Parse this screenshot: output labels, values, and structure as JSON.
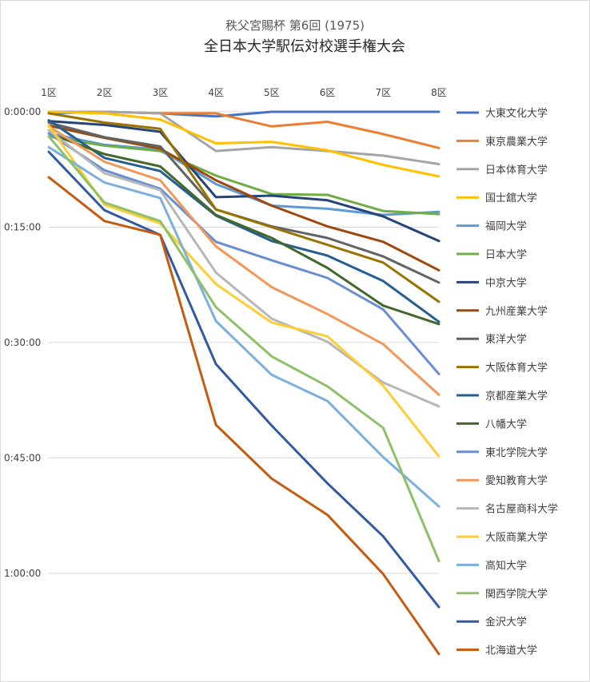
{
  "chart_data": {
    "type": "line",
    "title": "全日本大学駅伝対校選手権大会",
    "subtitle": "秩父宮賜杯 第6回 (1975)",
    "x": [
      "1区",
      "2区",
      "3区",
      "4区",
      "5区",
      "6区",
      "7区",
      "8区"
    ],
    "y_ticks": [
      "0:00:00",
      "0:15:00",
      "0:30:00",
      "0:45:00",
      "1:00:00"
    ],
    "y_unit": "minutes behind leader",
    "y_reversed": true,
    "ylim": [
      0,
      70.5
    ],
    "grid": true,
    "legend_position": "right",
    "series": [
      {
        "name": "大東文化大学",
        "color": "#4472C4",
        "values": [
          0.2,
          0.0,
          0.2,
          0.6,
          0.0,
          0.0,
          0.0,
          0.0
        ]
      },
      {
        "name": "東京農業大学",
        "color": "#ED7D31",
        "values": [
          0.0,
          0.0,
          0.2,
          0.2,
          1.9,
          1.3,
          2.9,
          4.7
        ]
      },
      {
        "name": "日本体育大学",
        "color": "#A5A5A5",
        "values": [
          0.0,
          0.0,
          0.2,
          5.1,
          4.6,
          5.1,
          5.7,
          6.8
        ]
      },
      {
        "name": "国士舘大学",
        "color": "#FFC000",
        "values": [
          0.0,
          0.2,
          1.0,
          4.1,
          3.9,
          5.0,
          6.9,
          8.4
        ]
      },
      {
        "name": "福岡大学",
        "color": "#5B9BD5",
        "values": [
          2.8,
          4.3,
          4.9,
          9.4,
          12.2,
          12.6,
          13.4,
          13.0
        ]
      },
      {
        "name": "日本大学",
        "color": "#70AD47",
        "values": [
          3.2,
          4.4,
          5.1,
          8.3,
          10.7,
          10.8,
          12.9,
          13.3
        ]
      },
      {
        "name": "中京大学",
        "color": "#264478",
        "values": [
          1.2,
          1.7,
          2.6,
          11.1,
          10.9,
          11.5,
          13.6,
          16.8
        ]
      },
      {
        "name": "九州産業大学",
        "color": "#9E480E",
        "values": [
          1.8,
          3.4,
          4.8,
          8.9,
          12.2,
          14.9,
          16.9,
          20.6
        ]
      },
      {
        "name": "東洋大学",
        "color": "#636363",
        "values": [
          1.4,
          3.3,
          4.5,
          12.7,
          14.9,
          16.4,
          18.8,
          22.2
        ]
      },
      {
        "name": "大阪体育大学",
        "color": "#997300",
        "values": [
          0.2,
          1.4,
          2.2,
          12.7,
          15.0,
          17.3,
          19.6,
          24.7
        ]
      },
      {
        "name": "京都産業大学",
        "color": "#255E91",
        "values": [
          1.1,
          6.0,
          7.7,
          13.5,
          16.8,
          18.7,
          22.0,
          27.3
        ]
      },
      {
        "name": "八幡大学",
        "color": "#43682B",
        "values": [
          2.8,
          5.5,
          7.1,
          13.4,
          16.4,
          20.3,
          25.2,
          27.6
        ]
      },
      {
        "name": "東北学院大学",
        "color": "#698ED0",
        "values": [
          2.8,
          7.6,
          10.0,
          16.9,
          19.3,
          21.6,
          25.7,
          34.1
        ]
      },
      {
        "name": "愛知教育大学",
        "color": "#F1975A",
        "values": [
          1.9,
          6.5,
          8.9,
          17.5,
          22.8,
          26.3,
          30.2,
          36.8
        ]
      },
      {
        "name": "名古屋商科大学",
        "color": "#B7B7B7",
        "values": [
          2.4,
          8.0,
          10.2,
          20.9,
          26.9,
          29.9,
          35.2,
          38.3
        ]
      },
      {
        "name": "大阪商業大学",
        "color": "#FFCD33",
        "values": [
          1.8,
          12.1,
          14.5,
          22.4,
          27.4,
          29.2,
          35.6,
          44.8
        ]
      },
      {
        "name": "高知大学",
        "color": "#7CAFDD",
        "values": [
          4.6,
          9.2,
          11.2,
          27.2,
          34.2,
          37.6,
          44.9,
          51.3
        ]
      },
      {
        "name": "関西学院大学",
        "color": "#8CC168",
        "values": [
          3.2,
          11.8,
          14.2,
          25.4,
          31.8,
          35.7,
          41.1,
          58.4
        ]
      },
      {
        "name": "金沢大学",
        "color": "#335AA1",
        "values": [
          5.2,
          12.8,
          16.0,
          32.8,
          40.8,
          48.3,
          55.2,
          64.4
        ]
      },
      {
        "name": "北海道大学",
        "color": "#C55A11",
        "values": [
          8.5,
          14.2,
          16.0,
          40.7,
          47.7,
          52.4,
          60.1,
          70.5
        ]
      }
    ]
  }
}
